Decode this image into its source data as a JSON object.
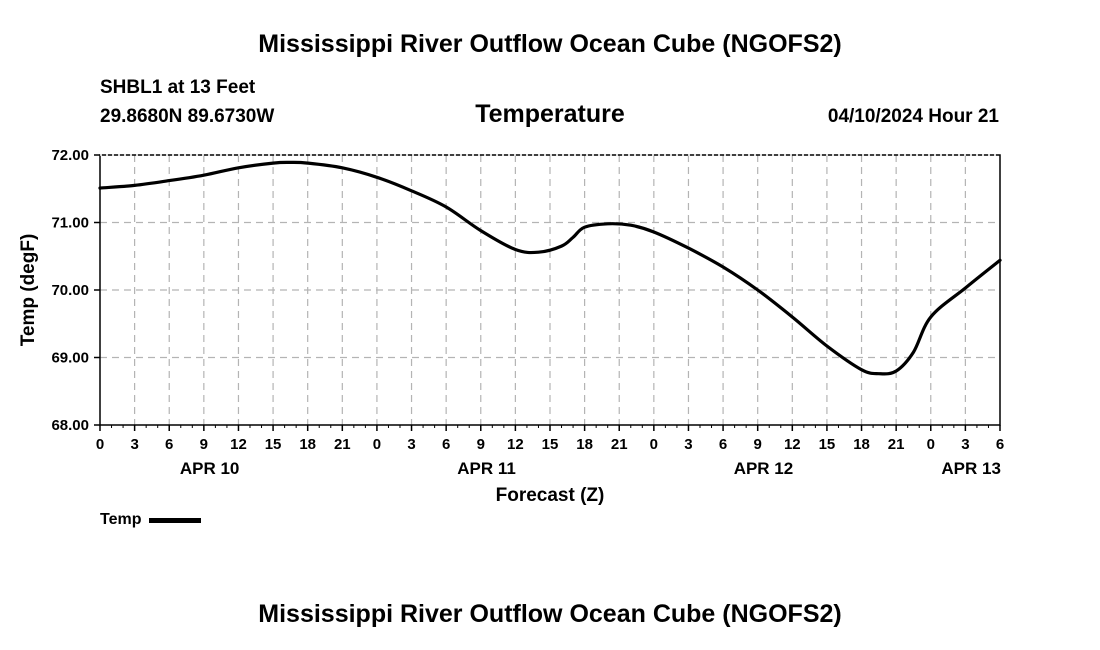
{
  "page": {
    "title_top": "Mississippi River Outflow Ocean Cube (NGOFS2)",
    "title_bottom": "Mississippi River Outflow Ocean Cube (NGOFS2)",
    "station_name": "SHBL1 at 13 Feet",
    "station_coords": "29.8680N  89.6730W",
    "variable_title": "Temperature",
    "forecast_time": "04/10/2024 Hour 21"
  },
  "legend": {
    "label": "Temp",
    "color": "#000000"
  },
  "chart_data": {
    "type": "line",
    "title": "Temperature",
    "xlabel": "Forecast (Z)",
    "ylabel": "Temp (degF)",
    "x_unit": "hours since APR 10 00Z",
    "xlim": [
      0,
      78
    ],
    "ylim": [
      68,
      72
    ],
    "yticks": [
      68,
      69,
      70,
      71,
      72
    ],
    "ytick_labels": [
      "68.00",
      "69.00",
      "70.00",
      "71.00",
      "72.00"
    ],
    "xticks": [
      0,
      3,
      6,
      9,
      12,
      15,
      18,
      21,
      24,
      27,
      30,
      33,
      36,
      39,
      42,
      45,
      48,
      51,
      54,
      57,
      60,
      63,
      66,
      69,
      72,
      75,
      78
    ],
    "xtick_labels": [
      "0",
      "3",
      "6",
      "9",
      "12",
      "15",
      "18",
      "21",
      "0",
      "3",
      "6",
      "9",
      "12",
      "15",
      "18",
      "21",
      "0",
      "3",
      "6",
      "9",
      "12",
      "15",
      "18",
      "21",
      "0",
      "3",
      "6"
    ],
    "date_labels": [
      {
        "label": "APR 10",
        "x": 9.5
      },
      {
        "label": "APR 11",
        "x": 33.5
      },
      {
        "label": "APR 12",
        "x": 57.5
      },
      {
        "label": "APR 13",
        "x": 75.5
      }
    ],
    "grid": true,
    "series": [
      {
        "name": "Temp",
        "color": "#000000",
        "x": [
          0,
          3,
          6,
          9,
          12,
          15,
          16.5,
          18,
          21,
          24,
          27,
          30,
          33,
          36,
          38,
          40,
          41,
          42,
          44,
          46,
          48,
          51,
          54,
          57,
          60,
          63,
          66,
          67.5,
          69,
          70.5,
          72,
          75,
          78
        ],
        "y": [
          71.51,
          71.55,
          71.62,
          71.7,
          71.81,
          71.88,
          71.89,
          71.88,
          71.81,
          71.67,
          71.47,
          71.23,
          70.88,
          70.6,
          70.56,
          70.65,
          70.78,
          70.93,
          70.98,
          70.96,
          70.86,
          70.62,
          70.34,
          70.0,
          69.6,
          69.17,
          68.82,
          68.76,
          68.8,
          69.08,
          69.6,
          70.03,
          70.44
        ]
      }
    ]
  }
}
